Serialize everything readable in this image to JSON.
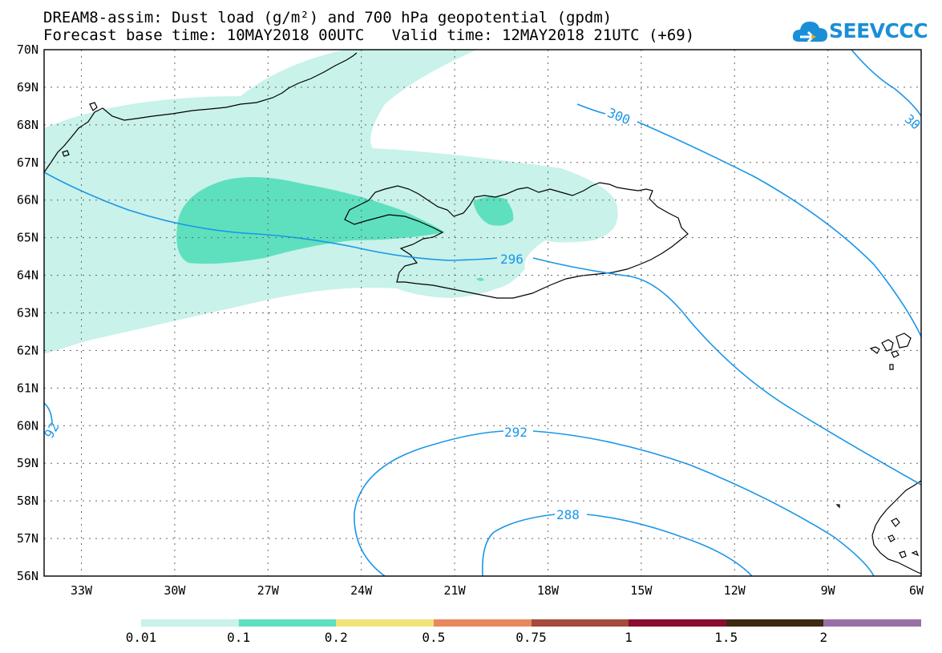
{
  "title": {
    "line1": "DREAM8-assim: Dust load (g/m²) and 700 hPa geopotential (gpdm)",
    "line2": "Forecast base time: 10MAY2018 00UTC   Valid time: 12MAY2018 21UTC (+69)"
  },
  "logo": {
    "text": "SEEVCCC",
    "icon": "cloud-icon"
  },
  "map": {
    "lat_labels": [
      "70N",
      "69N",
      "68N",
      "67N",
      "66N",
      "65N",
      "64N",
      "63N",
      "62N",
      "61N",
      "60N",
      "59N",
      "58N",
      "57N",
      "56N"
    ],
    "lon_labels": [
      "33W",
      "30W",
      "27W",
      "24W",
      "21W",
      "18W",
      "15W",
      "12W",
      "9W",
      "6W"
    ],
    "contour_labels": [
      "300",
      "30",
      "296",
      "292",
      "288",
      "92"
    ],
    "colors": {
      "dust_low": "#c8f2ea",
      "dust_mid": "#5ee0be",
      "contour": "#1a96e8",
      "coast": "#000000"
    }
  },
  "colorbar": {
    "labels": [
      "0.01",
      "0.1",
      "0.2",
      "0.5",
      "0.75",
      "1",
      "1.5",
      "2"
    ],
    "colors": [
      "#c8f2ea",
      "#5ee0be",
      "#f2e27a",
      "#e9885e",
      "#a44b3c",
      "#8a0d30",
      "#3c2a12",
      "#9a6fa6"
    ]
  }
}
